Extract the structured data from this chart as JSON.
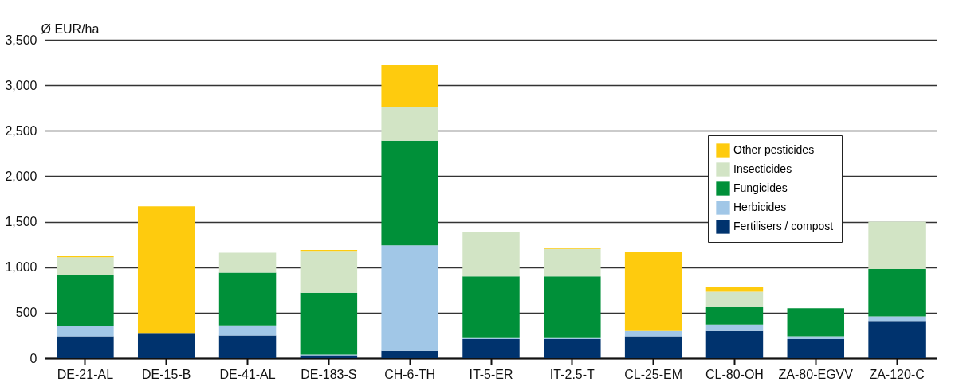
{
  "chart_data": {
    "type": "bar",
    "stacked": true,
    "ylabel": "Ø EUR/ha",
    "categories": [
      "DE-21-AL",
      "DE-15-B",
      "DE-41-AL",
      "DE-183-S",
      "CH-6-TH",
      "IT-5-ER",
      "IT-2.5-T",
      "CL-25-EM",
      "CL-80-OH",
      "ZA-80-EGVV",
      "ZA-120-C"
    ],
    "series": [
      {
        "name": "Fertilisers / compost",
        "color": "#00336e",
        "values": [
          240,
          270,
          250,
          30,
          80,
          210,
          210,
          240,
          300,
          210,
          410
        ]
      },
      {
        "name": "Herbicides",
        "color": "#a1c7e7",
        "values": [
          110,
          0,
          110,
          10,
          1160,
          10,
          10,
          60,
          70,
          30,
          50
        ]
      },
      {
        "name": "Fungicides",
        "color": "#009039",
        "values": [
          560,
          0,
          580,
          680,
          1150,
          680,
          680,
          0,
          190,
          310,
          520
        ]
      },
      {
        "name": "Insecticides",
        "color": "#d2e4c5",
        "values": [
          200,
          0,
          220,
          460,
          370,
          490,
          300,
          0,
          170,
          0,
          520
        ]
      },
      {
        "name": "Other pesticides",
        "color": "#fecb0e",
        "values": [
          10,
          1400,
          0,
          10,
          460,
          0,
          10,
          870,
          50,
          0,
          0
        ]
      }
    ],
    "ylim": [
      0,
      3500
    ],
    "yticks": [
      0,
      500,
      {
        "value": 1000,
        "label": "1,000"
      },
      {
        "value": 1500,
        "label": "1,500"
      },
      {
        "value": 2000,
        "label": "2,000"
      },
      {
        "value": 2500,
        "label": "2,500"
      },
      {
        "value": 3000,
        "label": "3,000"
      },
      {
        "value": 3500,
        "label": "3,500"
      }
    ],
    "grid": "y",
    "legend": "top right"
  }
}
